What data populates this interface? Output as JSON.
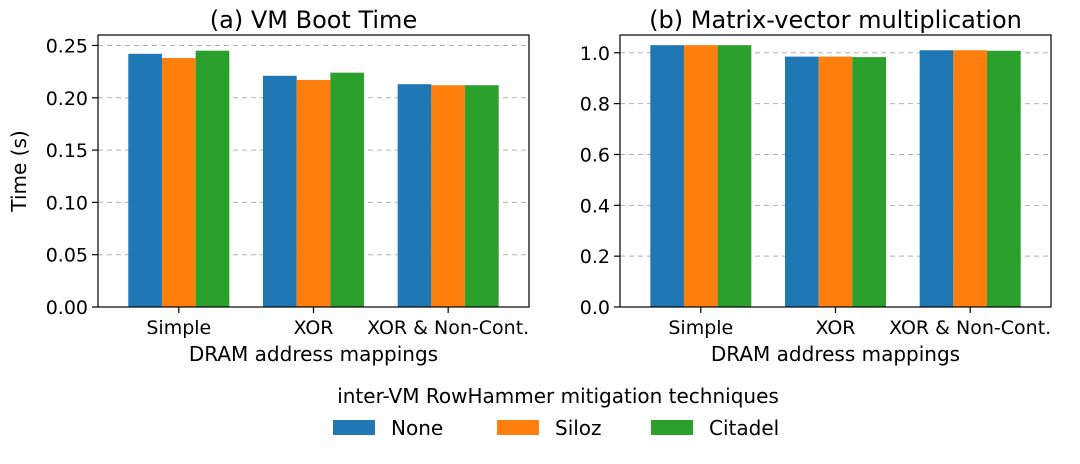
{
  "legend": {
    "title": "inter-VM RowHammer mitigation techniques",
    "placement": "bottom-center"
  },
  "chart_data": [
    {
      "type": "bar",
      "title": "(a) VM Boot Time",
      "xlabel": "DRAM address mappings",
      "ylabel": "Time (s)",
      "ylim": [
        0,
        0.26
      ],
      "yticks": [
        0.0,
        0.05,
        0.1,
        0.15,
        0.2,
        0.25
      ],
      "ytick_labels": [
        "0.00",
        "0.05",
        "0.10",
        "0.15",
        "0.20",
        "0.25"
      ],
      "grid": "y-dashed",
      "categories": [
        "Simple",
        "XOR",
        "XOR & Non-Cont."
      ],
      "series": [
        {
          "name": "None",
          "color": "#1f77b4",
          "values": [
            0.242,
            0.221,
            0.213
          ]
        },
        {
          "name": "Siloz",
          "color": "#ff7f0e",
          "values": [
            0.238,
            0.217,
            0.212
          ]
        },
        {
          "name": "Citadel",
          "color": "#2ca02c",
          "values": [
            0.245,
            0.224,
            0.212
          ]
        }
      ]
    },
    {
      "type": "bar",
      "title": "(b) Matrix-vector multiplication",
      "xlabel": "DRAM address mappings",
      "ylabel": "",
      "ylim": [
        0,
        1.07
      ],
      "yticks": [
        0.0,
        0.2,
        0.4,
        0.6,
        0.8,
        1.0
      ],
      "ytick_labels": [
        "0.0",
        "0.2",
        "0.4",
        "0.6",
        "0.8",
        "1.0"
      ],
      "grid": "y-dashed",
      "categories": [
        "Simple",
        "XOR",
        "XOR & Non-Cont."
      ],
      "series": [
        {
          "name": "None",
          "color": "#1f77b4",
          "values": [
            1.03,
            0.985,
            1.01
          ]
        },
        {
          "name": "Siloz",
          "color": "#ff7f0e",
          "values": [
            1.03,
            0.985,
            1.01
          ]
        },
        {
          "name": "Citadel",
          "color": "#2ca02c",
          "values": [
            1.03,
            0.983,
            1.008
          ]
        }
      ]
    }
  ]
}
